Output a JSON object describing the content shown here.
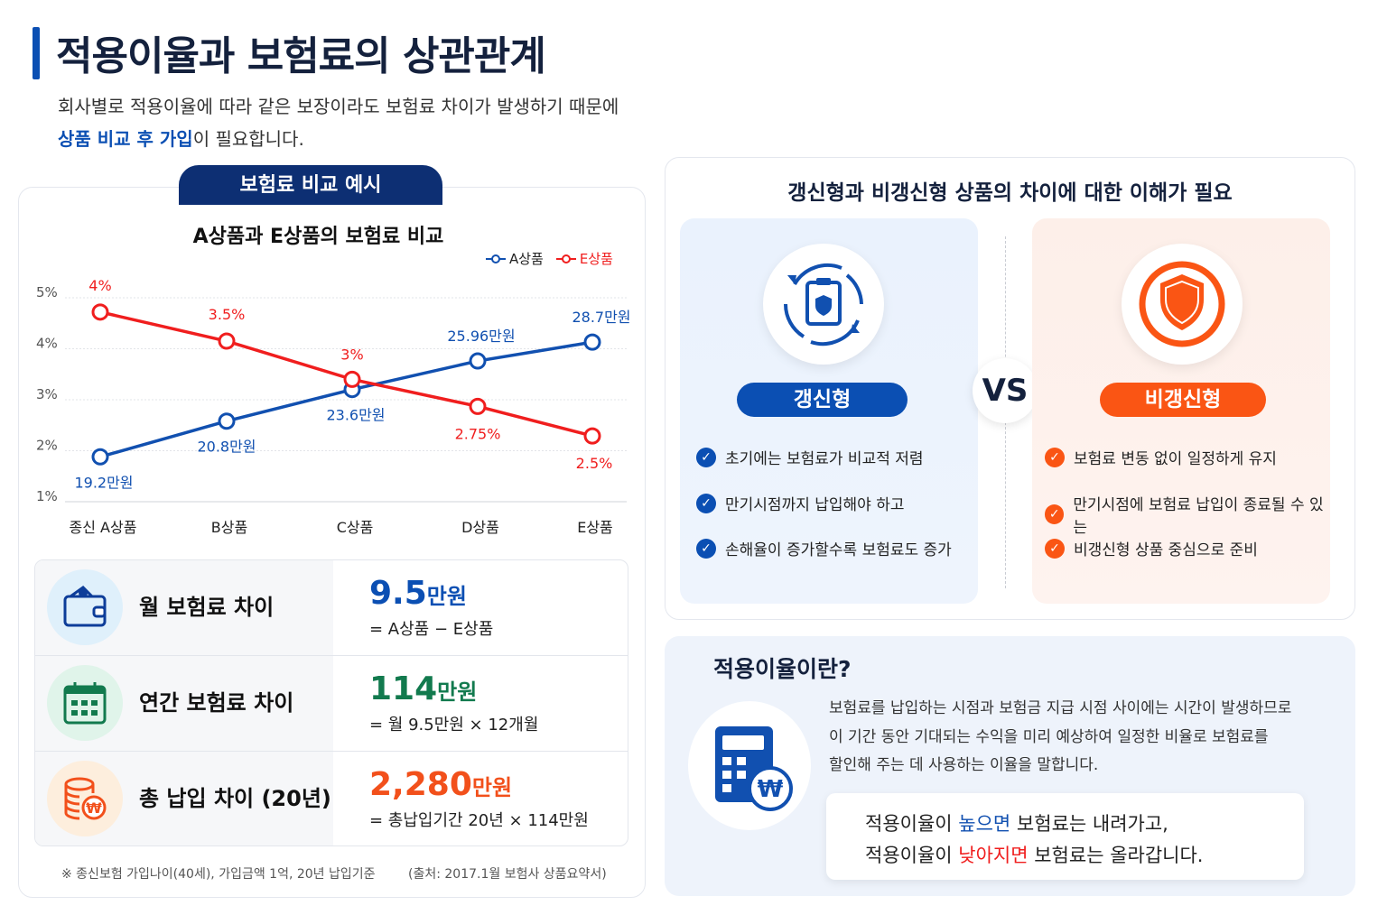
{
  "header": {
    "title": "적용이율과 보험료의 상관관계",
    "subtitle_line1": "회사별로 적용이율에 따라 같은 보장이라도 보험료 차이가 발생하기 때문에",
    "subtitle_highlight": "상품 비교 후 가입",
    "subtitle_rest": "이 필요합니다."
  },
  "left_panel": {
    "tab_label": "보험료 비교 예시",
    "summary": [
      {
        "label": "월 보험료 차이",
        "value": "9.5",
        "unit": "만원",
        "formula": "= A상품 − E상품",
        "icon": "wallet-icon",
        "color": "#0b4fb3"
      },
      {
        "label": "연간 보험료 차이",
        "value": "114",
        "unit": "만원",
        "formula": "= 월 9.5만원 × 12개월",
        "icon": "calendar-icon",
        "color": "#127a4e"
      },
      {
        "label": "총 납입 차이 (20년)",
        "value": "2,280",
        "unit": "만원",
        "formula": "= 총납입기간 20년 × 114만원",
        "icon": "coins-won-icon",
        "color": "#f2501b"
      }
    ],
    "footnote": "※ 종신보험 가입나이(40세), 가입금액 1억, 20년 납입기준",
    "source": "(출처: 2017.1월 보험사 상품요약서)"
  },
  "chart_data": {
    "type": "line",
    "title": "A상품과 E상품의 보험료 비교",
    "categories": [
      "종신 A상품",
      "B상품",
      "C상품",
      "D상품",
      "E상품"
    ],
    "y_ticks": [
      "5%",
      "4%",
      "3%",
      "2%",
      "1%"
    ],
    "ylim": [
      1,
      5
    ],
    "grid": true,
    "legend_position": "top-right",
    "series": [
      {
        "name": "A상품",
        "color": "#1150b0",
        "values": [
          1.88,
          2.58,
          3.2,
          3.76,
          4.13
        ],
        "data_labels": [
          "19.2만원",
          "20.8만원",
          "23.6만원",
          "25.96만원",
          "28.7만원"
        ]
      },
      {
        "name": "E상품",
        "color": "#f01e1e",
        "values": [
          4.72,
          4.15,
          3.4,
          2.87,
          2.29
        ],
        "data_labels": [
          "4%",
          "3.5%",
          "3%",
          "2.75%",
          "2.5%"
        ]
      }
    ]
  },
  "right_panel": {
    "title": "갱신형과 비갱신형 상품의 차이에 대한 이해가 필요",
    "vs": "VS",
    "renewable": {
      "label": "갱신형",
      "color": "#0b4fb3",
      "points": [
        "초기에는 보험료가 비교적 저렴",
        "만기시점까지 납입해야 하고",
        "손해율이 증가할수록 보험료도 증가"
      ]
    },
    "non_renewable": {
      "label": "비갱신형",
      "color": "#fa5514",
      "points": [
        "보험료 변동 없이 일정하게 유지",
        "만기시점에 보험료 납입이 종료될 수 있는",
        "비갱신형 상품 중심으로 준비"
      ]
    }
  },
  "definition": {
    "title": "적용이율이란?",
    "lines": [
      "보험료를 납입하는 시점과 보험금 지급 시점 사이에는 시간이 발생하므로",
      "이 기간 동안 기대되는 수익을 미리 예상하여 일정한 비율로 보험료를",
      "할인해 주는 데 사용하는 이율을 말합니다."
    ],
    "note1": {
      "pre": "적용이율이 ",
      "hl": "높으면",
      "post": " 보험료는 내려가고,"
    },
    "note2": {
      "pre": "적용이율이 ",
      "hl": "낮아지면",
      "post": " 보험료는 올라갑니다."
    }
  }
}
